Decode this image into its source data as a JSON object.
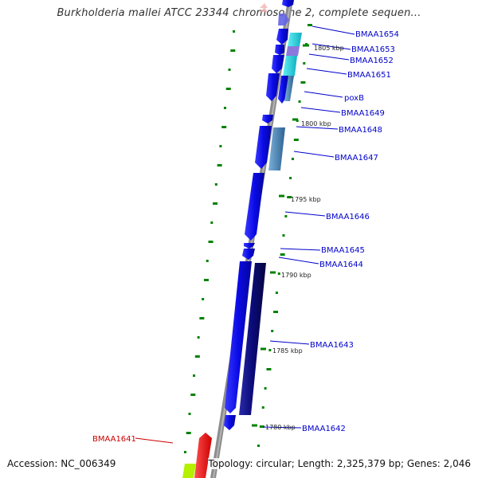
{
  "title": "Burkholderia mallei ATCC 23344 chromosome 2, complete sequen...",
  "footer": {
    "accession": "Accession: NC_006349",
    "summary": "Topology: circular; Length: 2,325,379 bp; Genes: 2,046"
  },
  "genes": [
    {
      "name": "BMAA1654",
      "color": "#0000cc"
    },
    {
      "name": "BMAA1653",
      "color": "#0000cc"
    },
    {
      "name": "BMAA1652",
      "color": "#0000cc"
    },
    {
      "name": "BMAA1651",
      "color": "#0000cc"
    },
    {
      "name": "poxB",
      "color": "#0000cc"
    },
    {
      "name": "BMAA1649",
      "color": "#0000cc"
    },
    {
      "name": "BMAA1648",
      "color": "#0000cc"
    },
    {
      "name": "BMAA1647",
      "color": "#0000cc"
    },
    {
      "name": "BMAA1646",
      "color": "#0000cc"
    },
    {
      "name": "BMAA1645",
      "color": "#0000cc"
    },
    {
      "name": "BMAA1644",
      "color": "#0000cc"
    },
    {
      "name": "BMAA1643",
      "color": "#0000cc"
    },
    {
      "name": "BMAA1642",
      "color": "#0000cc"
    },
    {
      "name": "BMAA1641",
      "color": "#cc0000"
    }
  ],
  "positions": [
    "1805 kbp",
    "1800 kbp",
    "1795 kbp",
    "1790 kbp",
    "1785 kbp",
    "1780 kbp"
  ],
  "colors": {
    "backbone": "#8c8c8c",
    "gene_plus": "#0a0ae6",
    "gene_dark": "#0a0a78",
    "gene_cyan": "#19d2dc",
    "gene_steel": "#4682b4",
    "gene_violet": "#8c78dc",
    "gene_red": "#ff0000",
    "gene_lime": "#b4f000",
    "gc_dash": "#008200",
    "leader_blue": "#0000cc",
    "leader_red": "#cc0000"
  }
}
